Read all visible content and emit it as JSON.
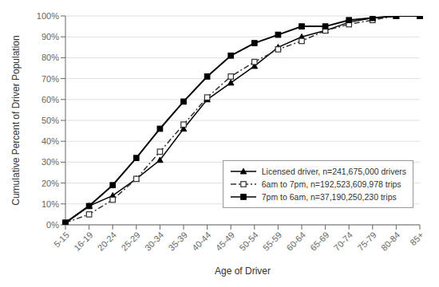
{
  "chart_data": {
    "type": "line",
    "x_label": "Age of Driver",
    "y_label": "Cumulative Percent of Driver Population",
    "categories": [
      "5-15",
      "16-19",
      "20-24",
      "25-29",
      "30-34",
      "35-39",
      "40-44",
      "45-49",
      "50-54",
      "55-59",
      "60-64",
      "65-69",
      "70-74",
      "75-79",
      "80-84",
      "85+"
    ],
    "series": [
      {
        "name": "Licensed driver, n=241,675,000 drivers",
        "color": "#000000",
        "marker": "triangle",
        "line_style": "solid",
        "values": [
          1,
          9,
          14,
          22,
          31,
          46,
          60,
          68,
          76,
          85,
          90,
          93,
          97,
          99,
          100,
          100
        ]
      },
      {
        "name": "6am to 7pm, n=192,523,609,978 trips",
        "color": "#333333",
        "marker": "open-square",
        "line_style": "dashdot",
        "values": [
          1,
          5,
          12,
          22,
          35,
          48,
          61,
          71,
          78,
          84,
          88,
          93,
          96,
          98,
          100,
          100
        ]
      },
      {
        "name": "7pm to 6am, n=37,190,250,230 trips",
        "color": "#000000",
        "marker": "square",
        "line_style": "solid",
        "values": [
          1,
          9,
          19,
          32,
          46,
          59,
          71,
          81,
          87,
          91,
          95,
          95,
          98,
          99,
          100,
          100
        ]
      }
    ],
    "ylim": [
      0,
      100
    ],
    "yticks": [
      {
        "value": 0,
        "label": "0%"
      },
      {
        "value": 10,
        "label": "10%"
      },
      {
        "value": 20,
        "label": "20%"
      },
      {
        "value": 30,
        "label": "30%"
      },
      {
        "value": 40,
        "label": "40%"
      },
      {
        "value": 50,
        "label": "50%"
      },
      {
        "value": 60,
        "label": "60%"
      },
      {
        "value": 70,
        "label": "70%"
      },
      {
        "value": 80,
        "label": "80%"
      },
      {
        "value": 90,
        "label": "90%"
      },
      {
        "value": 100,
        "label": "100%"
      }
    ],
    "grid": true,
    "legend": "lower right"
  }
}
